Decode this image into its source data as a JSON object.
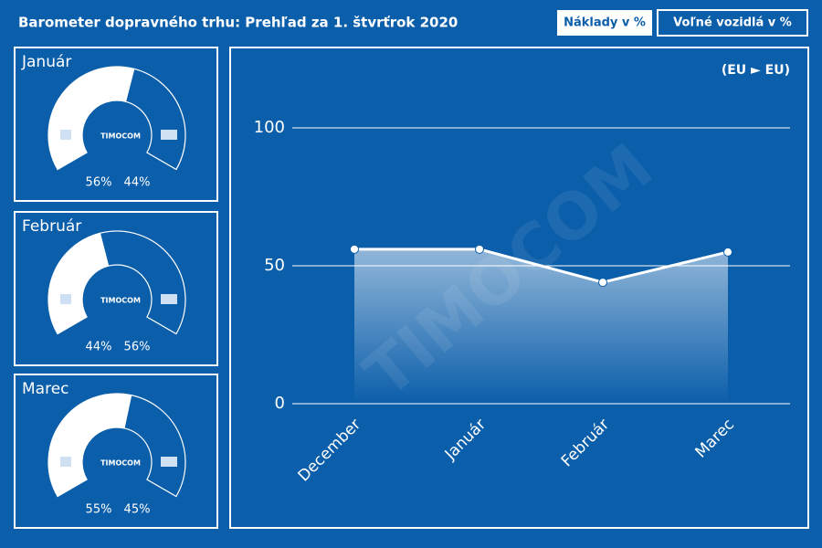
{
  "header": {
    "title": "Barometer dopravného trhu: Prehľad za 1. štvrťrok 2020",
    "buttons": [
      "Náklady v %",
      "Voľné vozidlá v %"
    ]
  },
  "logo": "TIMOCOM",
  "chart_data": [
    {
      "type": "gauge",
      "title": "Január",
      "values": [
        56,
        44
      ],
      "value_labels": [
        "56%",
        "44%"
      ]
    },
    {
      "type": "gauge",
      "title": "Február",
      "values": [
        44,
        56
      ],
      "value_labels": [
        "44%",
        "56%"
      ]
    },
    {
      "type": "gauge",
      "title": "Marec",
      "values": [
        55,
        45
      ],
      "value_labels": [
        "55%",
        "45%"
      ]
    },
    {
      "type": "line",
      "subtitle": "(EU ► EU)",
      "categories": [
        "December",
        "Január",
        "Február",
        "Marec"
      ],
      "values": [
        56,
        56,
        44,
        55
      ],
      "color": "#ffffff",
      "ylim": [
        0,
        100
      ],
      "yticks": [
        0,
        50,
        100
      ],
      "grid": true
    }
  ]
}
